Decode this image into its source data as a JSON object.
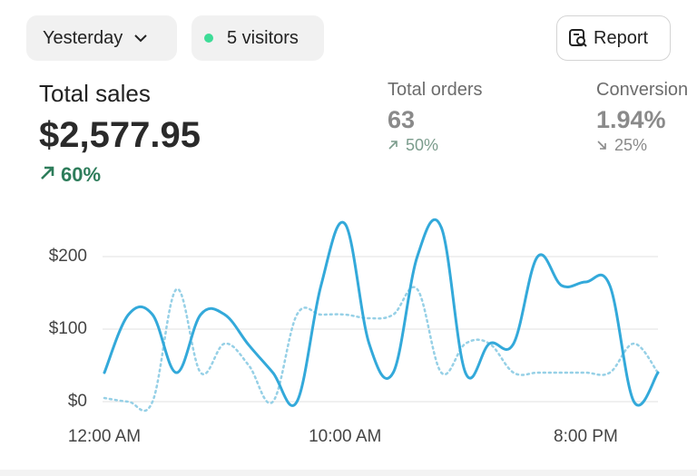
{
  "header": {
    "date_filter": "Yesterday",
    "visitors": "5 visitors",
    "report": "Report"
  },
  "metrics": [
    {
      "label": "Total sales",
      "value": "$2,577.95",
      "change": "60%"
    },
    {
      "label": "Total orders",
      "value": "63",
      "change": "50%"
    },
    {
      "label": "Conversion",
      "value": "1.94%",
      "change": "25%"
    }
  ],
  "chart_data": {
    "type": "line",
    "categories": [
      "12:00 AM",
      null,
      null,
      null,
      null,
      null,
      null,
      null,
      null,
      null,
      "10:00 AM",
      null,
      null,
      null,
      null,
      null,
      null,
      null,
      null,
      null,
      "8:00 PM",
      null,
      null,
      null
    ],
    "series": [
      {
        "color": "#33a9da",
        "style": "solid",
        "values": [
          40,
          120,
          120,
          40,
          120,
          120,
          78,
          40,
          0,
          160,
          245,
          80,
          40,
          200,
          240,
          40,
          80,
          80,
          200,
          160,
          165,
          160,
          0,
          40
        ]
      },
      {
        "color": "#96d0e6",
        "style": "dotted",
        "values": [
          5,
          0,
          0,
          155,
          40,
          80,
          50,
          0,
          120,
          120,
          120,
          115,
          120,
          155,
          40,
          80,
          80,
          40,
          40,
          40,
          40,
          40,
          80,
          40
        ]
      }
    ],
    "ylim": [
      0,
      250
    ],
    "yticks": [
      {
        "value": 0,
        "label": "$0"
      },
      {
        "value": 100,
        "label": "$100"
      },
      {
        "value": 200,
        "label": "$200"
      }
    ],
    "grid": true
  }
}
